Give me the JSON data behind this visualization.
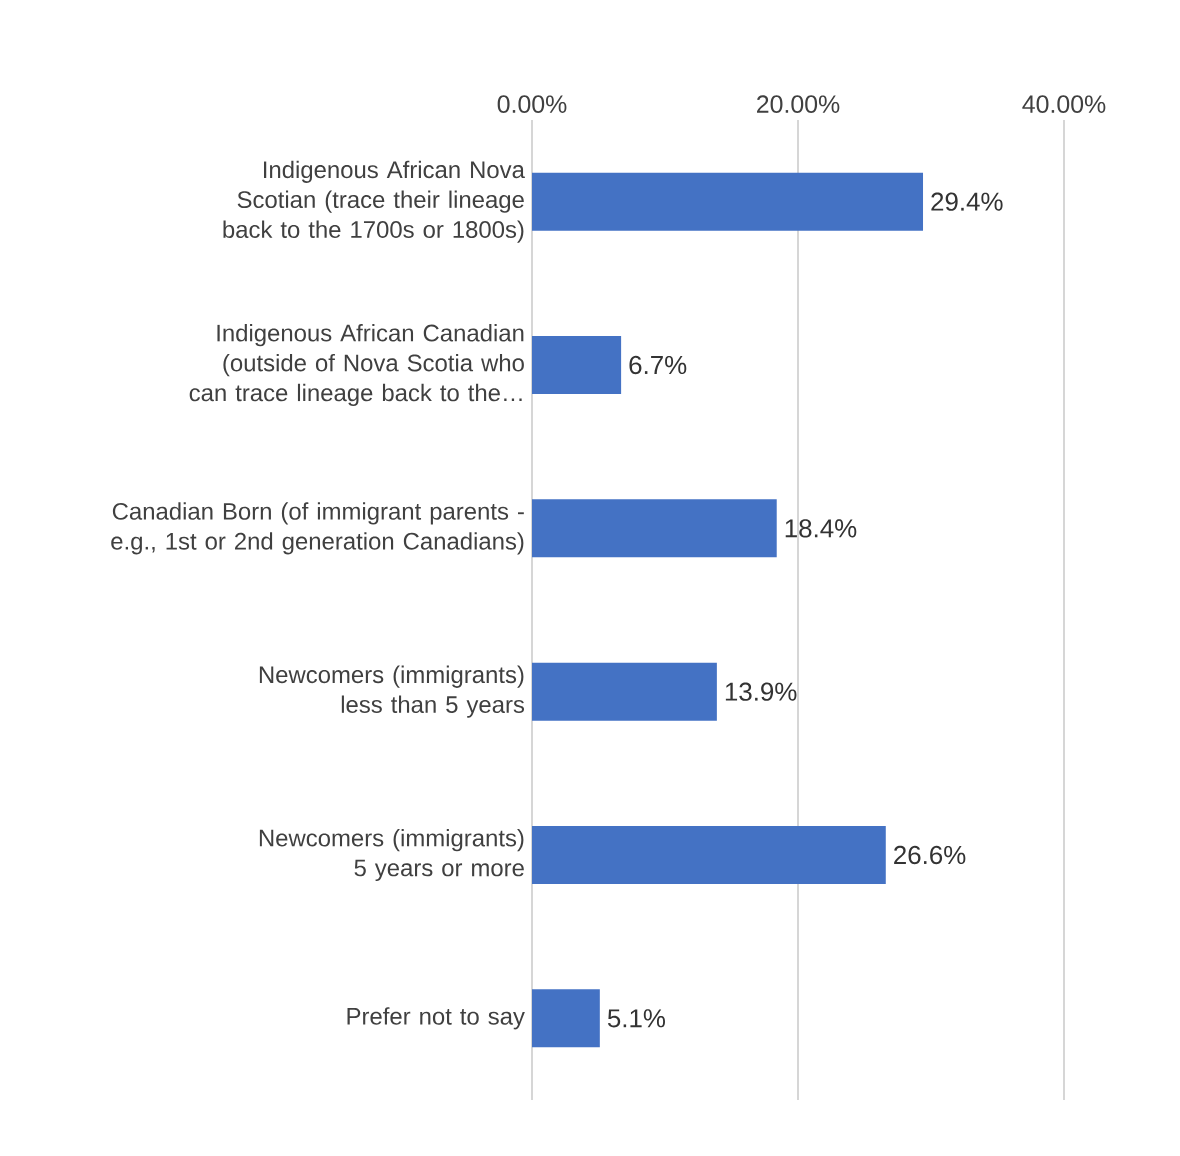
{
  "chart_data": {
    "type": "bar",
    "orientation": "horizontal",
    "categories": [
      "Indigenous African Nova Scotian (trace their lineage back to the 1700s or 1800s)",
      "Indigenous African Canadian (outside of Nova Scotia who can trace lineage back to the…",
      "Canadian Born (of immigrant parents - e.g., 1st or 2nd generation Canadians)",
      "Newcomers (immigrants) less than 5 years",
      "Newcomers (immigrants) 5 years or more",
      "Prefer not to say"
    ],
    "values": [
      29.4,
      6.7,
      18.4,
      13.9,
      26.6,
      5.1
    ],
    "value_labels": [
      "29.4%",
      "6.7%",
      "18.4%",
      "13.9%",
      "26.6%",
      "5.1%"
    ],
    "color": "#4472c4",
    "xlim": [
      0,
      40
    ],
    "xticks": [
      {
        "value": 0,
        "label": "0.00%"
      },
      {
        "value": 20,
        "label": "20.00%"
      },
      {
        "value": 40,
        "label": "40.00%"
      }
    ],
    "grid": "x"
  }
}
